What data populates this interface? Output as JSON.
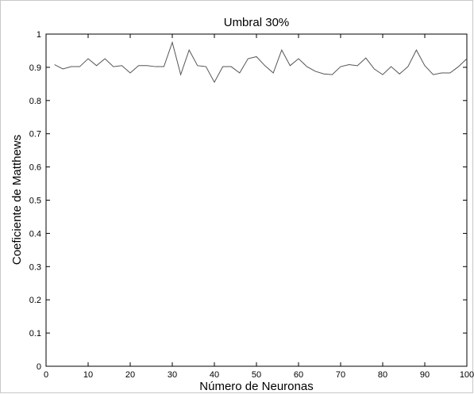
{
  "chart_data": {
    "type": "line",
    "title": "Umbral 30%",
    "xlabel": "Número de Neuronas",
    "ylabel": "Coeficiente de Matthews",
    "xlim": [
      0,
      100
    ],
    "ylim": [
      0,
      1
    ],
    "xticks": [
      0,
      10,
      20,
      30,
      40,
      50,
      60,
      70,
      80,
      90,
      100
    ],
    "yticks": [
      0,
      0.1,
      0.2,
      0.3,
      0.4,
      0.5,
      0.6,
      0.7,
      0.8,
      0.9,
      1
    ],
    "grid": false,
    "line_color": "#555555",
    "series": [
      {
        "x": [
          2,
          4,
          6,
          8,
          10,
          12,
          14,
          16,
          18,
          20,
          22,
          24,
          26,
          28,
          30,
          32,
          34,
          36,
          38,
          40,
          42,
          44,
          46,
          48,
          50,
          52,
          54,
          56,
          58,
          60,
          62,
          64,
          66,
          68,
          70,
          72,
          74,
          76,
          78,
          80,
          82,
          84,
          86,
          88,
          90,
          92,
          94,
          96,
          98,
          100
        ],
        "y": [
          0.908,
          0.895,
          0.902,
          0.902,
          0.926,
          0.905,
          0.926,
          0.902,
          0.905,
          0.883,
          0.905,
          0.905,
          0.902,
          0.902,
          0.975,
          0.878,
          0.952,
          0.905,
          0.902,
          0.855,
          0.902,
          0.902,
          0.883,
          0.926,
          0.932,
          0.905,
          0.883,
          0.952,
          0.905,
          0.926,
          0.902,
          0.888,
          0.88,
          0.878,
          0.902,
          0.908,
          0.905,
          0.928,
          0.895,
          0.878,
          0.902,
          0.88,
          0.902,
          0.952,
          0.905,
          0.878,
          0.883,
          0.883,
          0.902,
          0.926
        ]
      }
    ]
  }
}
